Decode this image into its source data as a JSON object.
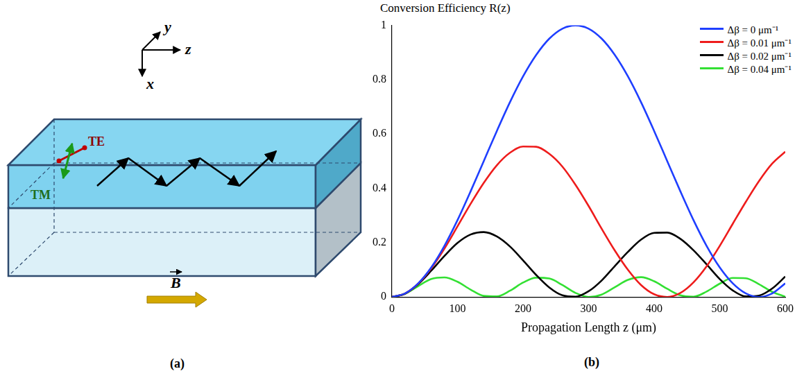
{
  "diagram": {
    "label": "(a)",
    "axes": [
      "y",
      "z",
      "x"
    ],
    "modes": [
      "TE",
      "TM"
    ],
    "field": "B"
  },
  "chart_data": {
    "label": "(b)",
    "type": "line",
    "title": "Conversion Efficiency R(z)",
    "x_label": "Propagation Length z (μm)",
    "x": [
      0,
      20,
      40,
      60,
      80,
      100,
      120,
      140,
      160,
      180,
      200,
      220,
      240,
      260,
      280,
      300,
      320,
      340,
      360,
      380,
      400,
      420,
      440,
      460,
      480,
      500,
      520,
      540,
      560,
      580,
      600
    ],
    "series": [
      {
        "name": "Δβ = 0 μm⁻¹",
        "color": "#1f3fff",
        "values": [
          0,
          0.013,
          0.05,
          0.109,
          0.188,
          0.283,
          0.389,
          0.5,
          0.611,
          0.717,
          0.812,
          0.891,
          0.951,
          0.988,
          1,
          0.988,
          0.951,
          0.891,
          0.812,
          0.717,
          0.611,
          0.5,
          0.389,
          0.283,
          0.188,
          0.109,
          0.05,
          0.013,
          0,
          0.013,
          0.05
        ]
      },
      {
        "name": "Δβ = 0.01 μm⁻¹",
        "color": "#ee1c1c",
        "values": [
          0,
          0.013,
          0.049,
          0.106,
          0.178,
          0.26,
          0.343,
          0.42,
          0.485,
          0.531,
          0.554,
          0.553,
          0.527,
          0.48,
          0.413,
          0.335,
          0.251,
          0.171,
          0.1,
          0.044,
          0.01,
          0,
          0.015,
          0.054,
          0.113,
          0.188,
          0.27,
          0.351,
          0.427,
          0.491,
          0.535
        ]
      },
      {
        "name": "Δβ = 0.02 μm⁻¹",
        "color": "#000000",
        "values": [
          0,
          0.012,
          0.047,
          0.097,
          0.151,
          0.199,
          0.23,
          0.239,
          0.223,
          0.186,
          0.135,
          0.081,
          0.035,
          0.006,
          0.001,
          0.021,
          0.061,
          0.114,
          0.166,
          0.211,
          0.236,
          0.237,
          0.214,
          0.172,
          0.12,
          0.066,
          0.024,
          0.002,
          0.005,
          0.031,
          0.075
        ]
      },
      {
        "name": "Δβ = 0.04 μm⁻¹",
        "color": "#33e033",
        "values": [
          0,
          0.012,
          0.04,
          0.066,
          0.072,
          0.056,
          0.027,
          0.004,
          0.002,
          0.023,
          0.053,
          0.071,
          0.068,
          0.044,
          0.015,
          0,
          0.009,
          0.036,
          0.063,
          0.073,
          0.058,
          0.03,
          0.006,
          0.001,
          0.02,
          0.049,
          0.07,
          0.069,
          0.047,
          0.019,
          0.001
        ]
      }
    ],
    "xlim": [
      0,
      600
    ],
    "xticks": [
      0,
      100,
      200,
      300,
      400,
      500,
      600
    ],
    "ylim": [
      0,
      1
    ],
    "yticks": [
      0,
      0.2,
      0.4,
      0.6,
      0.8,
      1
    ],
    "grid": false,
    "legend": "upper right"
  }
}
